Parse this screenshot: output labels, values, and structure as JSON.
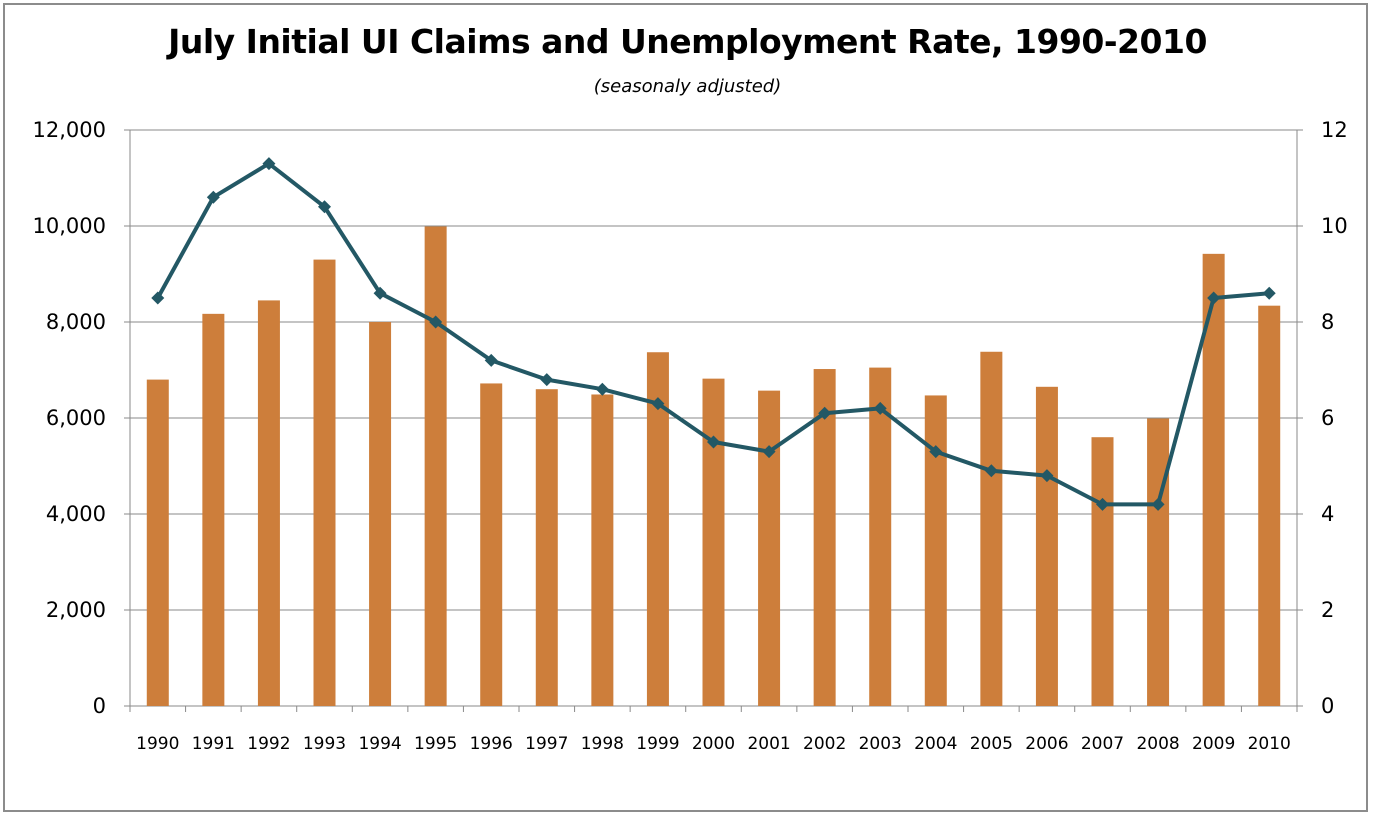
{
  "chart_data": {
    "type": "bar",
    "title": "July Initial UI Claims and Unemployment Rate, 1990-2010",
    "subtitle": "(seasonaly adjusted)",
    "xlabel": "",
    "ylabel": "",
    "y2label": "",
    "categories": [
      "1990",
      "1991",
      "1992",
      "1993",
      "1994",
      "1995",
      "1996",
      "1997",
      "1998",
      "1999",
      "2000",
      "2001",
      "2002",
      "2003",
      "2004",
      "2005",
      "2006",
      "2007",
      "2008",
      "2009",
      "2010"
    ],
    "ylim": [
      0,
      12000
    ],
    "yticks": [
      0,
      2000,
      4000,
      6000,
      8000,
      10000,
      12000
    ],
    "ytick_labels": [
      "0",
      "2,000",
      "4,000",
      "6,000",
      "8,000",
      "10,000",
      "12,000"
    ],
    "y2lim": [
      0,
      12
    ],
    "y2ticks": [
      0,
      2,
      4,
      6,
      8,
      10,
      12
    ],
    "y2tick_labels": [
      "0",
      "2",
      "4",
      "6",
      "8",
      "10",
      "12"
    ],
    "grid": true,
    "legend": "none",
    "series": [
      {
        "type": "bar",
        "axis": "left",
        "color": "#cd7e3b",
        "values": [
          6800,
          8170,
          8450,
          9300,
          8000,
          9990,
          6720,
          6600,
          6490,
          7370,
          6820,
          6570,
          7020,
          7050,
          6470,
          7380,
          6650,
          5600,
          5990,
          9420,
          8340
        ]
      },
      {
        "type": "line",
        "axis": "right",
        "color": "#235865",
        "marker": "diamond",
        "values": [
          8.5,
          10.6,
          11.3,
          10.4,
          8.6,
          8.0,
          7.2,
          6.8,
          6.6,
          6.3,
          5.5,
          5.3,
          6.1,
          6.2,
          5.3,
          4.9,
          4.8,
          4.2,
          4.2,
          8.5,
          8.6
        ]
      }
    ]
  }
}
